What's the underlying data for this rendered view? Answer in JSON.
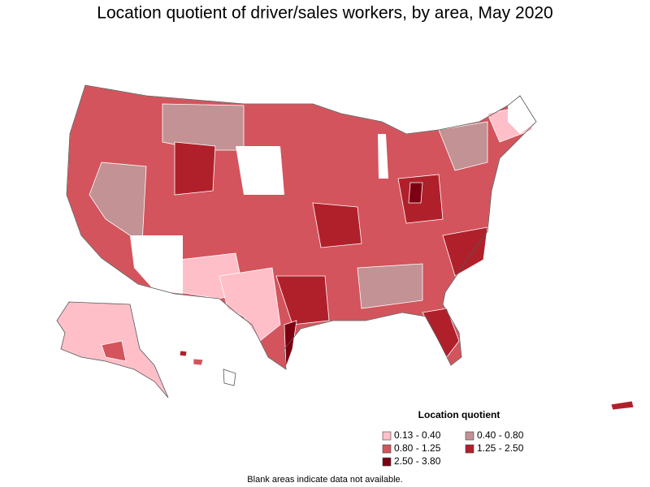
{
  "title": "Location quotient of driver/sales workers, by area, May 2020",
  "legend": {
    "title": "Location quotient",
    "items": [
      {
        "label": "0.13 - 0.40",
        "color": "#ffbfc8"
      },
      {
        "label": "0.40 - 0.80",
        "color": "#c29294"
      },
      {
        "label": "0.80 - 1.25",
        "color": "#d3545c"
      },
      {
        "label": "1.25 - 2.50",
        "color": "#b0202b"
      },
      {
        "label": "2.50 - 3.80",
        "color": "#7c0011"
      }
    ]
  },
  "note": "Blank areas indicate data not available."
}
